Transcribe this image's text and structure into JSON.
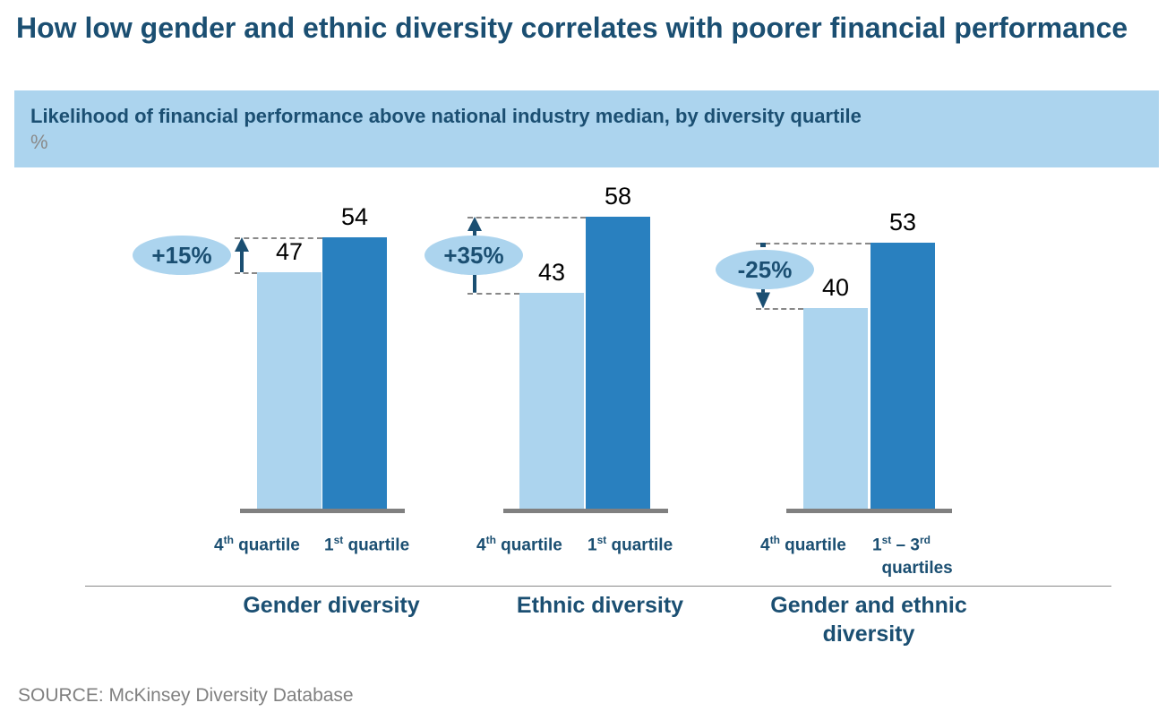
{
  "title": "How low gender and ethnic diversity correlates with poorer financial performance",
  "source": "SOURCE: McKinsey Diversity Database",
  "chart_data": {
    "type": "bar",
    "title": "Likelihood of financial performance above national industry median, by diversity quartile",
    "unit": "%",
    "ylim": [
      0,
      60
    ],
    "colors": {
      "low": "#acd4ee",
      "high": "#2980bf",
      "accent": "#1b4f72"
    },
    "groups": [
      {
        "name": "Gender diversity",
        "labels": [
          {
            "n": "4",
            "sup": "th",
            "t": " quartile"
          },
          {
            "n": "1",
            "sup": "st",
            "t": " quartile"
          }
        ],
        "values": [
          47,
          54
        ],
        "delta": "+15%",
        "direction": "up"
      },
      {
        "name": "Ethnic diversity",
        "labels": [
          {
            "n": "4",
            "sup": "th",
            "t": " quartile"
          },
          {
            "n": "1",
            "sup": "st",
            "t": " quartile"
          }
        ],
        "values": [
          43,
          58
        ],
        "delta": "+35%",
        "direction": "up"
      },
      {
        "name": "Gender and ethnic diversity",
        "labels": [
          {
            "n": "4",
            "sup": "th",
            "t": " quartile"
          },
          {
            "n": "1",
            "sup": "st",
            "t": " – 3",
            "sup2": "rd",
            "t2": " quartiles"
          }
        ],
        "values": [
          40,
          53
        ],
        "delta": "-25%",
        "direction": "down"
      }
    ]
  }
}
